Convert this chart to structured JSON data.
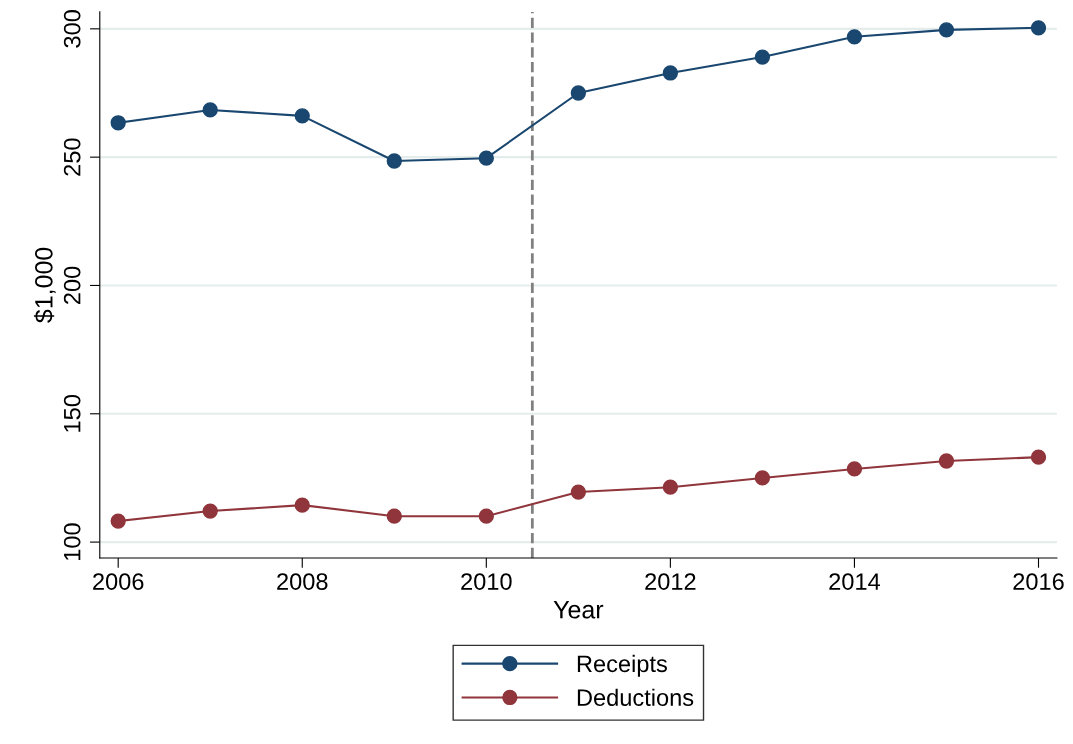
{
  "chart_data": {
    "type": "line",
    "xlabel": "Year",
    "ylabel": "$1,000",
    "x": [
      2006,
      2007,
      2008,
      2009,
      2010,
      2011,
      2012,
      2013,
      2014,
      2015,
      2016
    ],
    "series": [
      {
        "name": "Receipts",
        "color": "#1a476f",
        "values": [
          263.4,
          268.4,
          266.1,
          248.5,
          249.6,
          275.0,
          282.8,
          289.0,
          296.9,
          299.6,
          300.4
        ]
      },
      {
        "name": "Deductions",
        "color": "#90353b",
        "values": [
          108.2,
          112.1,
          114.4,
          110.1,
          110.1,
          119.5,
          121.4,
          125.0,
          128.5,
          131.6,
          133.1
        ]
      }
    ],
    "xlim": [
      2005.8,
      2016.2
    ],
    "xticks": [
      2006,
      2008,
      2010,
      2012,
      2014,
      2016
    ],
    "ylim": [
      93.8,
      306.6
    ],
    "yticks": [
      100,
      150,
      200,
      250,
      300
    ],
    "ref_lines": [
      {
        "axis": "x",
        "value": 2010.5,
        "color": "#808080",
        "line_style": "dashed"
      }
    ],
    "grid": "y",
    "legend": "bottom",
    "marker": "circle",
    "line_style": "solid"
  }
}
